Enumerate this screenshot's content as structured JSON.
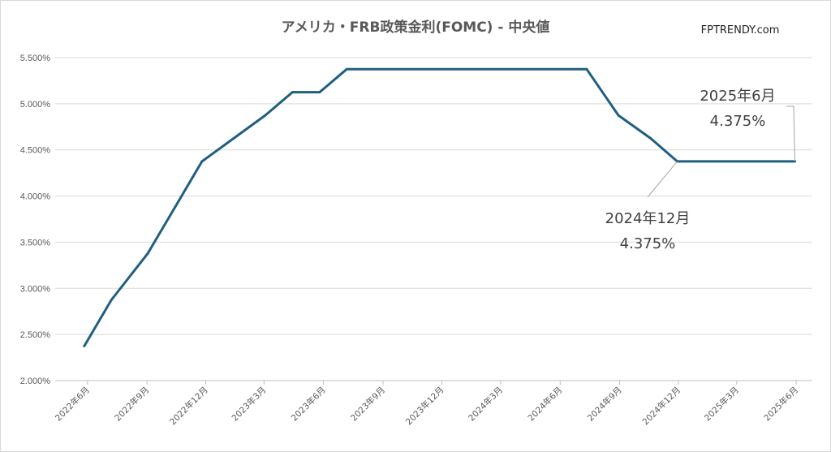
{
  "chart_data": {
    "type": "line",
    "title": "アメリカ・FRB政策金利(FOMC) - 中央値",
    "brand": "FPTRENDY.com",
    "ylim": [
      2.0,
      5.5
    ],
    "yticks": [
      {
        "value": 2.0,
        "label": "2.000%"
      },
      {
        "value": 2.5,
        "label": "2.500%"
      },
      {
        "value": 3.0,
        "label": "3.000%"
      },
      {
        "value": 3.5,
        "label": "3.500%"
      },
      {
        "value": 4.0,
        "label": "4.000%"
      },
      {
        "value": 4.5,
        "label": "4.500%"
      },
      {
        "value": 5.0,
        "label": "5.000%"
      },
      {
        "value": 5.5,
        "label": "5.500%"
      }
    ],
    "xticks": [
      "2022年6月",
      "2022年9月",
      "2022年12月",
      "2023年3月",
      "2023年6月",
      "2023年9月",
      "2023年12月",
      "2024年3月",
      "2024年6月",
      "2024年9月",
      "2024年12月",
      "2025年3月",
      "2025年6月"
    ],
    "grid": true,
    "legend": "none",
    "series_color": "#1f5f7f",
    "points": [
      {
        "date": "2022-06-15",
        "value": 2.375
      },
      {
        "date": "2022-07-27",
        "value": 2.875
      },
      {
        "date": "2022-09-21",
        "value": 3.375
      },
      {
        "date": "2022-11-02",
        "value": 3.875
      },
      {
        "date": "2022-12-14",
        "value": 4.375
      },
      {
        "date": "2023-02-01",
        "value": 4.625
      },
      {
        "date": "2023-03-22",
        "value": 4.875
      },
      {
        "date": "2023-05-03",
        "value": 5.125
      },
      {
        "date": "2023-06-14",
        "value": 5.125
      },
      {
        "date": "2023-07-26",
        "value": 5.375
      },
      {
        "date": "2024-07-31",
        "value": 5.375
      },
      {
        "date": "2024-09-18",
        "value": 4.875
      },
      {
        "date": "2024-11-07",
        "value": 4.625
      },
      {
        "date": "2024-12-18",
        "value": 4.375
      },
      {
        "date": "2025-06-18",
        "value": 4.375
      }
    ],
    "annotations": [
      {
        "date": "2024-12-18",
        "value": 4.375,
        "line1": "2024年12月",
        "line2": "4.375%"
      },
      {
        "date": "2025-06-18",
        "value": 4.375,
        "line1": "2025年6月",
        "line2": "4.375%"
      }
    ]
  }
}
